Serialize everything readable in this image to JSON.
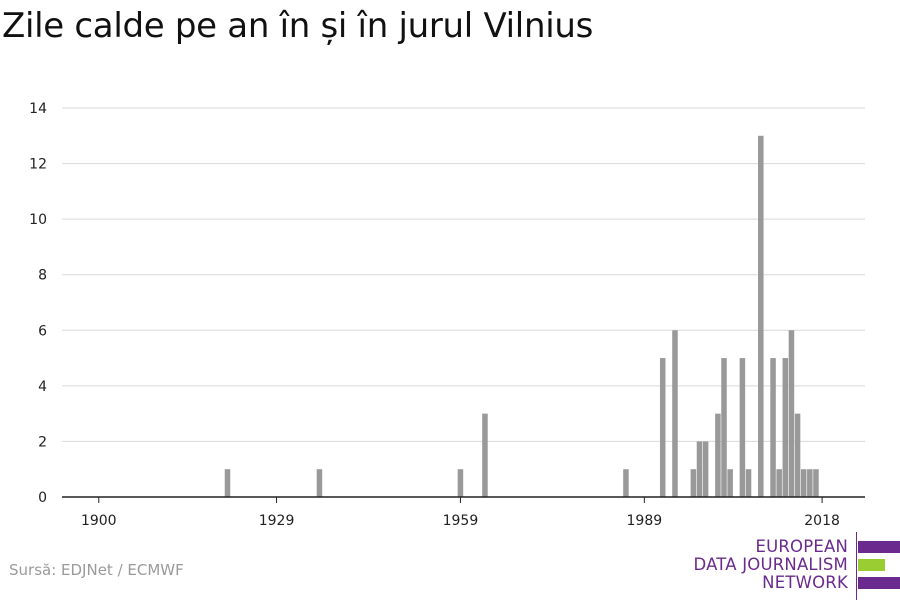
{
  "title": "Zile calde pe an în și în jurul Vilnius",
  "source": "Sursă: EDJNet / ECMWF",
  "logo": {
    "line1": "EUROPEAN",
    "line2": "DATA JOURNALISM",
    "line3": "NETWORK",
    "colors": {
      "purple": "#6b2a8e",
      "green": "#9acd32"
    }
  },
  "colors": {
    "bar": "#999999",
    "grid": "#d9d9d9",
    "axis": "#222222"
  },
  "chart_data": {
    "type": "bar",
    "title": "Zile calde pe an în și în jurul Vilnius",
    "xlabel": "",
    "ylabel": "",
    "xlim": [
      1894,
      2025
    ],
    "ylim": [
      0,
      14
    ],
    "x_ticks": [
      1900,
      1929,
      1959,
      1989,
      2018
    ],
    "y_ticks": [
      0,
      2,
      4,
      6,
      8,
      10,
      12,
      14
    ],
    "grid": true,
    "x": [
      1921,
      1936,
      1959,
      1963,
      1986,
      1992,
      1994,
      1997,
      1998,
      1999,
      2001,
      2002,
      2003,
      2005,
      2006,
      2008,
      2010,
      2011,
      2012,
      2013,
      2014,
      2015,
      2016,
      2017
    ],
    "values": [
      1,
      1,
      1,
      3,
      1,
      5,
      6,
      1,
      2,
      2,
      3,
      5,
      1,
      5,
      1,
      13,
      5,
      1,
      5,
      6,
      3,
      1,
      1,
      1
    ]
  }
}
